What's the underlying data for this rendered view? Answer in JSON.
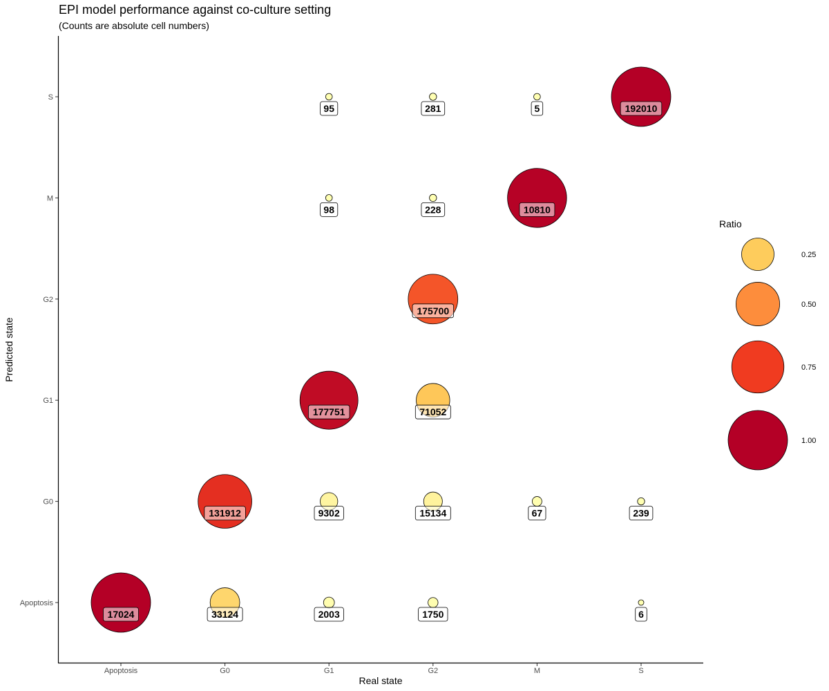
{
  "chart_data": {
    "type": "scatter",
    "title": "EPI model performance against co-culture setting",
    "subtitle": "(Counts are absolute cell numbers)",
    "xlabel": "Real state",
    "ylabel": "Predicted state",
    "x_categories": [
      "Apoptosis",
      "G0",
      "G1",
      "G2",
      "M",
      "S"
    ],
    "y_categories": [
      "Apoptosis",
      "G0",
      "G1",
      "G2",
      "M",
      "S"
    ],
    "grid": false,
    "legend": {
      "title": "Ratio",
      "position": "right",
      "entries": [
        {
          "label": "0.25",
          "value": 0.25
        },
        {
          "label": "0.50",
          "value": 0.5
        },
        {
          "label": "0.75",
          "value": 0.75
        },
        {
          "label": "1.00",
          "value": 1.0
        }
      ]
    },
    "points": [
      {
        "x": "Apoptosis",
        "y": "Apoptosis",
        "count": "17024",
        "ratio": 1.0
      },
      {
        "x": "G0",
        "y": "Apoptosis",
        "count": "33124",
        "ratio": 0.2
      },
      {
        "x": "G1",
        "y": "Apoptosis",
        "count": "2003",
        "ratio": 0.01
      },
      {
        "x": "G2",
        "y": "Apoptosis",
        "count": "1750",
        "ratio": 0.007
      },
      {
        "x": "S",
        "y": "Apoptosis",
        "count": "6",
        "ratio": 0.0
      },
      {
        "x": "G0",
        "y": "G0",
        "count": "131912",
        "ratio": 0.8
      },
      {
        "x": "G1",
        "y": "G0",
        "count": "9302",
        "ratio": 0.05
      },
      {
        "x": "G2",
        "y": "G0",
        "count": "15134",
        "ratio": 0.06
      },
      {
        "x": "M",
        "y": "G0",
        "count": "67",
        "ratio": 0.006
      },
      {
        "x": "S",
        "y": "G0",
        "count": "239",
        "ratio": 0.001
      },
      {
        "x": "G1",
        "y": "G1",
        "count": "177751",
        "ratio": 0.95
      },
      {
        "x": "G2",
        "y": "G1",
        "count": "71052",
        "ratio": 0.27
      },
      {
        "x": "G2",
        "y": "G2",
        "count": "175700",
        "ratio": 0.67
      },
      {
        "x": "G1",
        "y": "M",
        "count": "98",
        "ratio": 0.0005
      },
      {
        "x": "G2",
        "y": "M",
        "count": "228",
        "ratio": 0.001
      },
      {
        "x": "M",
        "y": "M",
        "count": "10810",
        "ratio": 0.99
      },
      {
        "x": "G1",
        "y": "S",
        "count": "95",
        "ratio": 0.0005
      },
      {
        "x": "G2",
        "y": "S",
        "count": "281",
        "ratio": 0.001
      },
      {
        "x": "M",
        "y": "S",
        "count": "5",
        "ratio": 0.0005
      },
      {
        "x": "S",
        "y": "S",
        "count": "192010",
        "ratio": 1.0
      }
    ]
  }
}
